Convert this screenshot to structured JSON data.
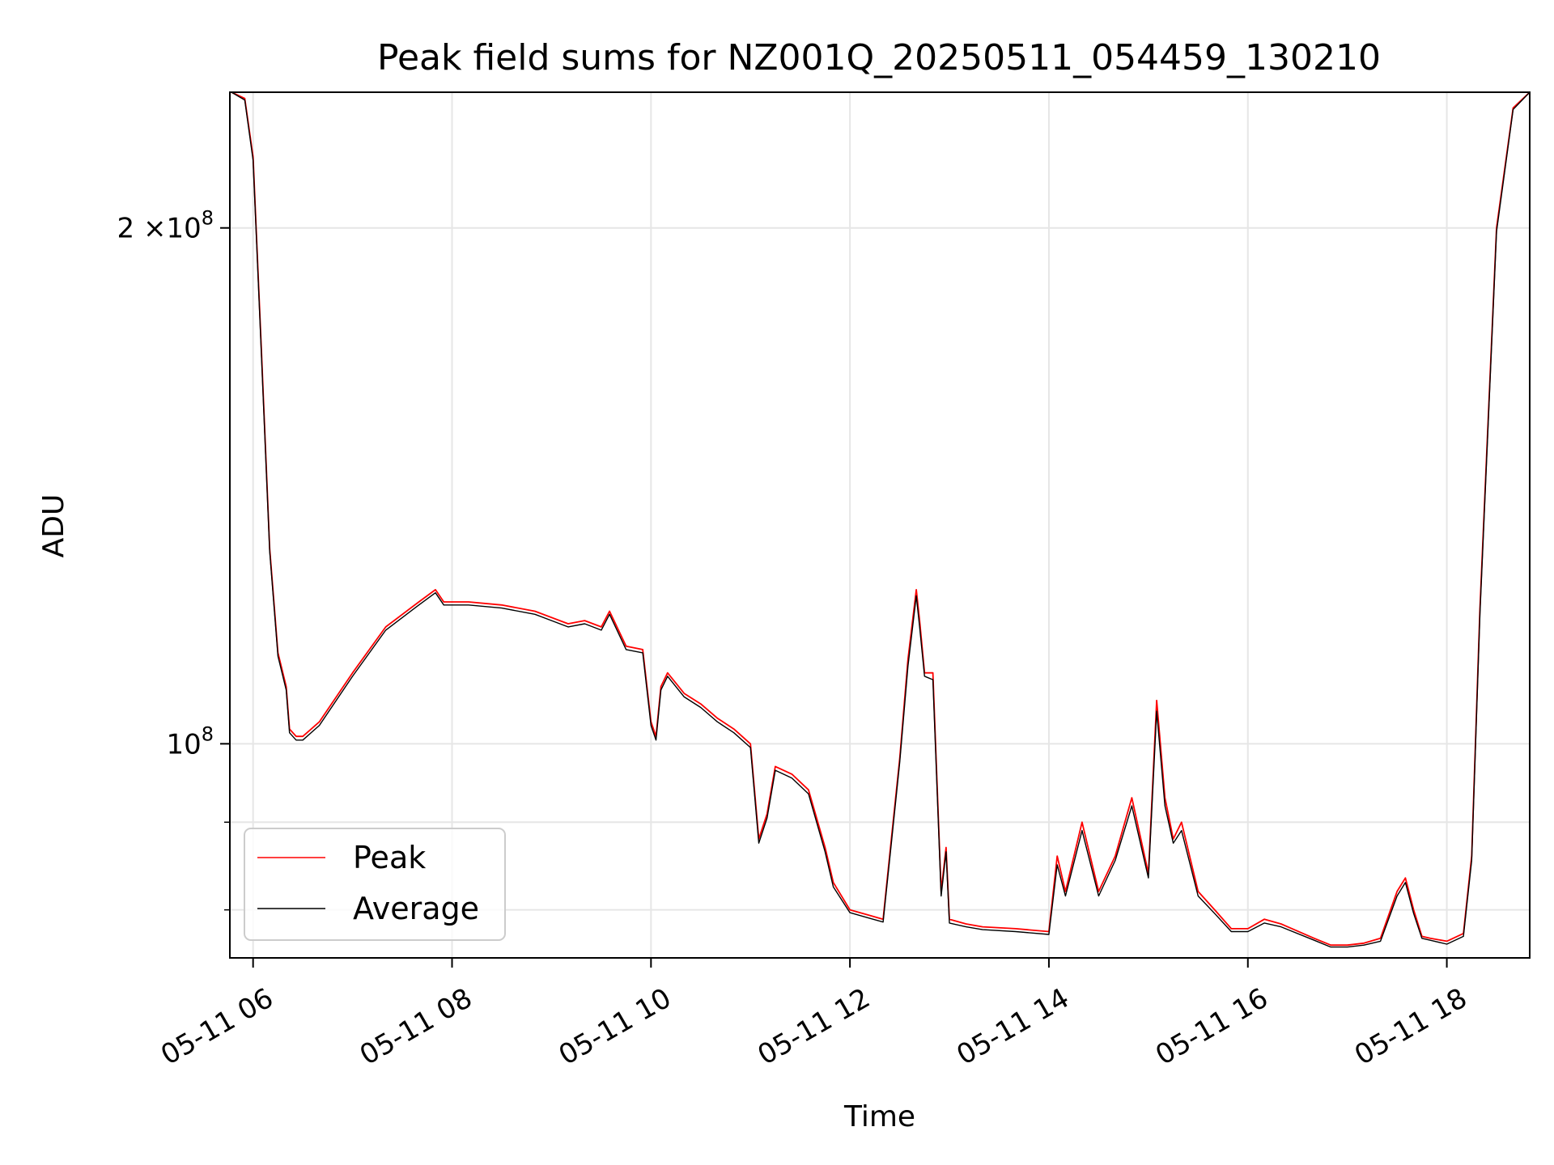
{
  "chart_data": {
    "type": "line",
    "title": "Peak field sums for NZ001Q_20250511_054459_130210",
    "xlabel": "Time",
    "ylabel": "ADU",
    "y_scale": "log",
    "ylim": [
      75000000,
      240000000
    ],
    "xlim": [
      "05-11 05:46",
      "05-11 18:50"
    ],
    "grid": true,
    "legend_location": "lower-left",
    "x_ticks": [
      "05-11 06",
      "05-11 08",
      "05-11 10",
      "05-11 12",
      "05-11 14",
      "05-11 16",
      "05-11 18"
    ],
    "y_tick_labels": [
      {
        "value": 200000000,
        "mantissa": "2",
        "base": "×10",
        "exp": "8"
      },
      {
        "value": 100000000,
        "mantissa": "",
        "base": "10",
        "exp": "8"
      }
    ],
    "y_minor_ticks": [
      90000000,
      80000000
    ],
    "series": [
      {
        "name": "Peak",
        "color": "#ff0000",
        "x": [
          "05-11 05:47",
          "05-11 05:55",
          "05-11 06:00",
          "05-11 06:05",
          "05-11 06:10",
          "05-11 06:15",
          "05-11 06:20",
          "05-11 06:22",
          "05-11 06:26",
          "05-11 06:30",
          "05-11 06:40",
          "05-11 07:00",
          "05-11 07:20",
          "05-11 07:40",
          "05-11 07:50",
          "05-11 07:55",
          "05-11 08:10",
          "05-11 08:30",
          "05-11 08:50",
          "05-11 09:10",
          "05-11 09:20",
          "05-11 09:30",
          "05-11 09:35",
          "05-11 09:45",
          "05-11 09:55",
          "05-11 10:00",
          "05-11 10:03",
          "05-11 10:06",
          "05-11 10:10",
          "05-11 10:20",
          "05-11 10:30",
          "05-11 10:40",
          "05-11 10:50",
          "05-11 11:00",
          "05-11 11:05",
          "05-11 11:10",
          "05-11 11:15",
          "05-11 11:25",
          "05-11 11:35",
          "05-11 11:45",
          "05-11 11:50",
          "05-11 12:00",
          "05-11 12:10",
          "05-11 12:20",
          "05-11 12:25",
          "05-11 12:30",
          "05-11 12:35",
          "05-11 12:40",
          "05-11 12:42",
          "05-11 12:45",
          "05-11 12:50",
          "05-11 12:55",
          "05-11 12:58",
          "05-11 13:00",
          "05-11 13:10",
          "05-11 13:20",
          "05-11 13:40",
          "05-11 14:00",
          "05-11 14:05",
          "05-11 14:10",
          "05-11 14:20",
          "05-11 14:30",
          "05-11 14:40",
          "05-11 14:50",
          "05-11 15:00",
          "05-11 15:05",
          "05-11 15:10",
          "05-11 15:15",
          "05-11 15:20",
          "05-11 15:30",
          "05-11 15:40",
          "05-11 15:50",
          "05-11 16:00",
          "05-11 16:10",
          "05-11 16:20",
          "05-11 16:40",
          "05-11 16:50",
          "05-11 17:00",
          "05-11 17:10",
          "05-11 17:20",
          "05-11 17:30",
          "05-11 17:35",
          "05-11 17:40",
          "05-11 17:45",
          "05-11 17:50",
          "05-11 18:00",
          "05-11 18:10",
          "05-11 18:15",
          "05-11 18:20",
          "05-11 18:30",
          "05-11 18:40",
          "05-11 18:50"
        ],
        "y": [
          240000000,
          238000000,
          220000000,
          170000000,
          130000000,
          113000000,
          108000000,
          102000000,
          101000000,
          101000000,
          103000000,
          110000000,
          117000000,
          121000000,
          123000000,
          121000000,
          121000000,
          120500000,
          119500000,
          117500000,
          118000000,
          117000000,
          119500000,
          114000000,
          113500000,
          103000000,
          101000000,
          108000000,
          110000000,
          107000000,
          105500000,
          103500000,
          102000000,
          100000000,
          88000000,
          91000000,
          97000000,
          96000000,
          94000000,
          87000000,
          83000000,
          80000000,
          79500000,
          79000000,
          88000000,
          98000000,
          112000000,
          123000000,
          118000000,
          110000000,
          110000000,
          82000000,
          87000000,
          79000000,
          78500000,
          78200000,
          78000000,
          77700000,
          86000000,
          82000000,
          90000000,
          82000000,
          86000000,
          93000000,
          84000000,
          106000000,
          93000000,
          88000000,
          90000000,
          82000000,
          80000000,
          78000000,
          78000000,
          79000000,
          78500000,
          77000000,
          76300000,
          76300000,
          76500000,
          77000000,
          82000000,
          83500000,
          80000000,
          77200000,
          77000000,
          76700000,
          77500000,
          86000000,
          120000000,
          200000000,
          235000000,
          240000000
        ]
      },
      {
        "name": "Average",
        "color": "#000000",
        "x": [
          "05-11 05:47",
          "05-11 05:55",
          "05-11 06:00",
          "05-11 06:05",
          "05-11 06:10",
          "05-11 06:15",
          "05-11 06:20",
          "05-11 06:22",
          "05-11 06:26",
          "05-11 06:30",
          "05-11 06:40",
          "05-11 07:00",
          "05-11 07:20",
          "05-11 07:40",
          "05-11 07:50",
          "05-11 07:55",
          "05-11 08:10",
          "05-11 08:30",
          "05-11 08:50",
          "05-11 09:10",
          "05-11 09:20",
          "05-11 09:30",
          "05-11 09:35",
          "05-11 09:45",
          "05-11 09:55",
          "05-11 10:00",
          "05-11 10:03",
          "05-11 10:06",
          "05-11 10:10",
          "05-11 10:20",
          "05-11 10:30",
          "05-11 10:40",
          "05-11 10:50",
          "05-11 11:00",
          "05-11 11:05",
          "05-11 11:10",
          "05-11 11:15",
          "05-11 11:25",
          "05-11 11:35",
          "05-11 11:45",
          "05-11 11:50",
          "05-11 12:00",
          "05-11 12:10",
          "05-11 12:20",
          "05-11 12:25",
          "05-11 12:30",
          "05-11 12:35",
          "05-11 12:40",
          "05-11 12:42",
          "05-11 12:45",
          "05-11 12:50",
          "05-11 12:55",
          "05-11 12:58",
          "05-11 13:00",
          "05-11 13:10",
          "05-11 13:20",
          "05-11 13:40",
          "05-11 14:00",
          "05-11 14:05",
          "05-11 14:10",
          "05-11 14:20",
          "05-11 14:30",
          "05-11 14:40",
          "05-11 14:50",
          "05-11 15:00",
          "05-11 15:05",
          "05-11 15:10",
          "05-11 15:15",
          "05-11 15:20",
          "05-11 15:30",
          "05-11 15:40",
          "05-11 15:50",
          "05-11 16:00",
          "05-11 16:10",
          "05-11 16:20",
          "05-11 16:40",
          "05-11 16:50",
          "05-11 17:00",
          "05-11 17:10",
          "05-11 17:20",
          "05-11 17:30",
          "05-11 17:35",
          "05-11 17:40",
          "05-11 17:45",
          "05-11 17:50",
          "05-11 18:00",
          "05-11 18:10",
          "05-11 18:15",
          "05-11 18:20",
          "05-11 18:30",
          "05-11 18:40",
          "05-11 18:50"
        ],
        "y": [
          240000000,
          237500000,
          219000000,
          169000000,
          129500000,
          112500000,
          107500000,
          101500000,
          100500000,
          100500000,
          102500000,
          109500000,
          116500000,
          120500000,
          122500000,
          120500000,
          120500000,
          120000000,
          119000000,
          117000000,
          117500000,
          116500000,
          119000000,
          113500000,
          113000000,
          102500000,
          100500000,
          107500000,
          109500000,
          106500000,
          105000000,
          103000000,
          101500000,
          99500000,
          87500000,
          90500000,
          96500000,
          95500000,
          93500000,
          86500000,
          82500000,
          79700000,
          79200000,
          78700000,
          87500000,
          97500000,
          111000000,
          122000000,
          117000000,
          109500000,
          109000000,
          81500000,
          86500000,
          78600000,
          78200000,
          77900000,
          77700000,
          77400000,
          85000000,
          81500000,
          89000000,
          81500000,
          85500000,
          92000000,
          83500000,
          104500000,
          92000000,
          87500000,
          89000000,
          81500000,
          79600000,
          77700000,
          77700000,
          78600000,
          78200000,
          76800000,
          76100000,
          76100000,
          76300000,
          76700000,
          81500000,
          83000000,
          79600000,
          77000000,
          76800000,
          76400000,
          77200000,
          85500000,
          119000000,
          199000000,
          234500000,
          240000000
        ]
      }
    ]
  }
}
